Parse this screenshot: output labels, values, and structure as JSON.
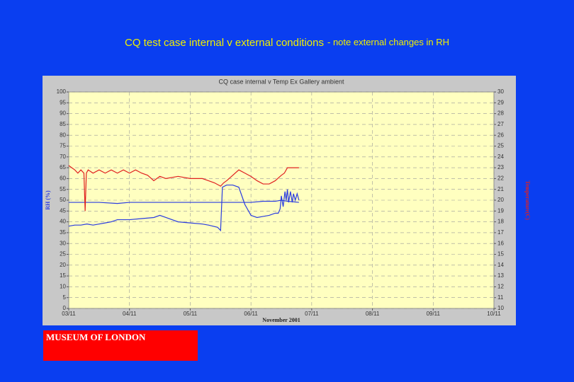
{
  "chart_data": {
    "type": "line",
    "page_title": "CQ test case internal v external conditions",
    "page_subtitle": "- note external changes in RH",
    "title": "CQ case internal v Temp Ex Gallery ambient",
    "xlabel": "November 2001",
    "ylabel": "RH (%)",
    "y2label": "Temperature(C)",
    "xlim": [
      3,
      10
    ],
    "xticks": [
      {
        "value": 3,
        "label": "03/11"
      },
      {
        "value": 4,
        "label": "04/11"
      },
      {
        "value": 5,
        "label": "05/11"
      },
      {
        "value": 6,
        "label": "06/11"
      },
      {
        "value": 7,
        "label": "07/11"
      },
      {
        "value": 8,
        "label": "08/11"
      },
      {
        "value": 9,
        "label": "09/11"
      },
      {
        "value": 10,
        "label": "10/11"
      }
    ],
    "ylim": [
      0,
      100
    ],
    "yticks": [
      0,
      5,
      10,
      15,
      20,
      25,
      30,
      35,
      40,
      45,
      50,
      55,
      60,
      65,
      70,
      75,
      80,
      85,
      90,
      95,
      100
    ],
    "y2lim": [
      10,
      30
    ],
    "y2ticks": [
      10,
      11,
      12,
      13,
      14,
      15,
      16,
      17,
      18,
      19,
      20,
      21,
      22,
      23,
      24,
      25,
      26,
      27,
      28,
      29,
      30
    ],
    "grid": true,
    "series": [
      {
        "color": "#2a3ce0",
        "x": [
          3.0,
          3.1,
          3.2,
          3.3,
          3.4,
          3.5,
          3.6,
          3.7,
          3.8,
          3.9,
          4.0,
          4.2,
          4.4,
          4.5,
          4.6,
          4.8,
          5.0,
          5.2,
          5.3,
          5.45,
          5.5,
          5.53,
          5.6,
          5.7,
          5.8,
          5.85,
          5.9,
          6.0,
          6.1,
          6.2,
          6.3,
          6.4,
          6.45,
          6.48,
          6.5,
          6.53,
          6.56,
          6.58,
          6.6,
          6.62,
          6.65,
          6.68,
          6.7,
          6.73,
          6.76,
          6.79
        ],
        "values": [
          38,
          38.5,
          38.5,
          39,
          38.5,
          39,
          39.5,
          40,
          41,
          41,
          41,
          41.5,
          42,
          43,
          42,
          40,
          39.5,
          39,
          38.5,
          37.5,
          36,
          56,
          57,
          57,
          56,
          52,
          48,
          43,
          42,
          42.5,
          43,
          44,
          44,
          46,
          52,
          47,
          54,
          50,
          55,
          49,
          54,
          49,
          53,
          50,
          53,
          50
        ]
      },
      {
        "color": "#2a3ce0",
        "x": [
          3.0,
          3.5,
          3.8,
          4.0,
          4.5,
          5.0,
          5.5,
          6.0,
          6.2,
          6.4,
          6.5,
          6.6,
          6.79
        ],
        "values": [
          49,
          49,
          48.5,
          49,
          49,
          49,
          49,
          49,
          49.5,
          49.5,
          50,
          49.5,
          49
        ]
      },
      {
        "color": "#e02020",
        "axis": "y2",
        "x": [
          3.0,
          3.05,
          3.1,
          3.15,
          3.2,
          3.25,
          3.27,
          3.29,
          3.32,
          3.4,
          3.5,
          3.6,
          3.7,
          3.8,
          3.9,
          4.0,
          4.1,
          4.2,
          4.3,
          4.4,
          4.5,
          4.6,
          4.8,
          5.0,
          5.2,
          5.3,
          5.4,
          5.5,
          5.55,
          5.6,
          5.7,
          5.8,
          5.9,
          6.0,
          6.1,
          6.2,
          6.3,
          6.4,
          6.5,
          6.55,
          6.6,
          6.7,
          6.79
        ],
        "values": [
          23.2,
          23,
          22.8,
          22.5,
          22.8,
          22.5,
          19,
          22.5,
          22.8,
          22.5,
          22.8,
          22.5,
          22.8,
          22.5,
          22.8,
          22.5,
          22.8,
          22.5,
          22.3,
          21.8,
          22.2,
          22,
          22.2,
          22,
          22,
          21.8,
          21.6,
          21.3,
          21.6,
          21.8,
          22.3,
          22.8,
          22.5,
          22.2,
          21.8,
          21.5,
          21.5,
          21.8,
          22.3,
          22.5,
          23,
          23,
          23
        ]
      }
    ]
  },
  "footer": {
    "logo": "MUSEUM OF LONDON"
  }
}
